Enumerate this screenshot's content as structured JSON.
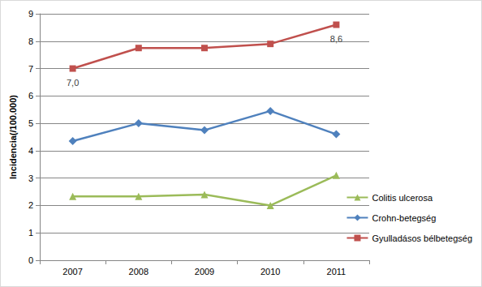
{
  "chart_data": {
    "type": "line",
    "y_label": "Incidencia(/100.000)",
    "categories": [
      "2007",
      "2008",
      "2009",
      "2010",
      "2011"
    ],
    "series": [
      {
        "name": "Colitis ulcerosa",
        "color": "#9bbb59",
        "marker": "triangle",
        "values": [
          2.33,
          2.33,
          2.4,
          2.0,
          3.1
        ]
      },
      {
        "name": "Crohn-betegség",
        "color": "#4f81bd",
        "marker": "diamond",
        "values": [
          4.35,
          5.0,
          4.75,
          5.45,
          4.6
        ]
      },
      {
        "name": "Gyulladásos bélbetegség",
        "color": "#c0504d",
        "marker": "square",
        "values": [
          7.0,
          7.75,
          7.75,
          7.9,
          8.6
        ],
        "data_labels": true,
        "value_labels": [
          "7,0",
          null,
          null,
          null,
          "8,6"
        ]
      }
    ],
    "ylim": [
      0,
      9
    ],
    "yticks": [
      0,
      1,
      2,
      3,
      4,
      5,
      6,
      7,
      8,
      9
    ],
    "grid": true,
    "legend": "right"
  }
}
